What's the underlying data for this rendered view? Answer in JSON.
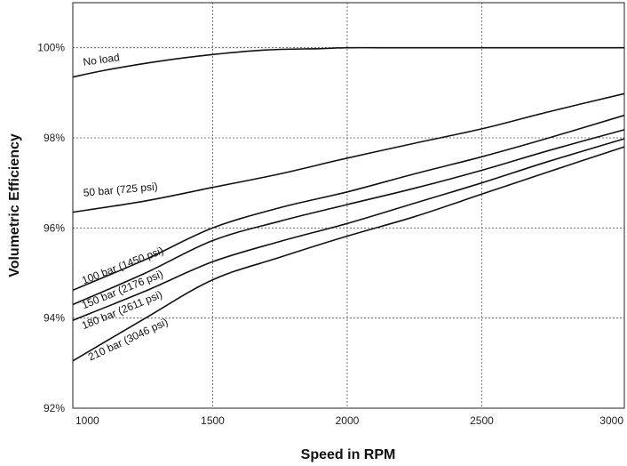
{
  "chart_data": {
    "type": "line",
    "title": "",
    "xlabel": "Speed in RPM",
    "ylabel": "Volumetric Efficiency",
    "xlim": [
      980,
      3030
    ],
    "ylim": [
      92,
      101
    ],
    "x_ticks": [
      1000,
      1500,
      2000,
      2500,
      3000
    ],
    "x_tick_labels": [
      "1000",
      "1500",
      "2000",
      "2500",
      "3000"
    ],
    "y_ticks": [
      92,
      94,
      96,
      98,
      100
    ],
    "y_tick_labels": [
      "92%",
      "94%",
      "96%",
      "98%",
      "100%"
    ],
    "grid": true,
    "legend": "none",
    "series": [
      {
        "name": "No load",
        "x": [
          980,
          1100,
          1300,
          1500,
          1700,
          1900,
          2000,
          2200,
          2500,
          3030
        ],
        "y": [
          99.35,
          99.5,
          99.7,
          99.85,
          99.95,
          99.98,
          100.0,
          100.0,
          100.0,
          100.0
        ]
      },
      {
        "name": "50 bar (725 psi)",
        "x": [
          980,
          1250,
          1500,
          1750,
          2000,
          2250,
          2500,
          2750,
          3030
        ],
        "y": [
          96.35,
          96.6,
          96.9,
          97.2,
          97.55,
          97.88,
          98.2,
          98.58,
          98.98
        ]
      },
      {
        "name": "100 bar (1450 psi)",
        "x": [
          980,
          1250,
          1500,
          1750,
          2000,
          2250,
          2500,
          2750,
          3030
        ],
        "y": [
          94.62,
          95.3,
          96.0,
          96.45,
          96.8,
          97.2,
          97.58,
          98.0,
          98.5
        ]
      },
      {
        "name": "150 bar (2176 psi)",
        "x": [
          980,
          1250,
          1500,
          1750,
          2000,
          2250,
          2500,
          2750,
          3030
        ],
        "y": [
          94.3,
          95.0,
          95.72,
          96.15,
          96.52,
          96.88,
          97.28,
          97.72,
          98.18
        ]
      },
      {
        "name": "180 bar (2611 psi)",
        "x": [
          980,
          1250,
          1500,
          1750,
          2000,
          2250,
          2500,
          2750,
          3030
        ],
        "y": [
          93.95,
          94.6,
          95.25,
          95.7,
          96.1,
          96.55,
          97.0,
          97.48,
          97.98
        ]
      },
      {
        "name": "210 bar (3046 psi)",
        "x": [
          980,
          1250,
          1500,
          1750,
          2000,
          2250,
          2500,
          2750,
          3030
        ],
        "y": [
          93.05,
          94.0,
          94.85,
          95.35,
          95.82,
          96.25,
          96.75,
          97.25,
          97.8
        ]
      }
    ],
    "annotations": [
      {
        "series": "No load",
        "text": "No load",
        "at_x": 1020,
        "at_y": 99.6,
        "rotate": -8
      },
      {
        "series": "50 bar (725 psi)",
        "text": "50 bar (725 psi)",
        "at_x": 1020,
        "at_y": 96.7,
        "rotate": -5
      },
      {
        "series": "100 bar (1450 psi)",
        "text": "100 bar (1450 psi)",
        "at_x": 1020,
        "at_y": 94.75,
        "rotate": -21
      },
      {
        "series": "150 bar (2176 psi)",
        "text": "150 bar (2176 psi)",
        "at_x": 1020,
        "at_y": 94.2,
        "rotate": -22
      },
      {
        "series": "180 bar (2611 psi)",
        "text": "180 bar (2611 psi)",
        "at_x": 1020,
        "at_y": 93.75,
        "rotate": -22
      },
      {
        "series": "210 bar (3046 psi)",
        "text": "210 bar (3046 psi)",
        "at_x": 1045,
        "at_y": 93.05,
        "rotate": -25
      }
    ]
  }
}
